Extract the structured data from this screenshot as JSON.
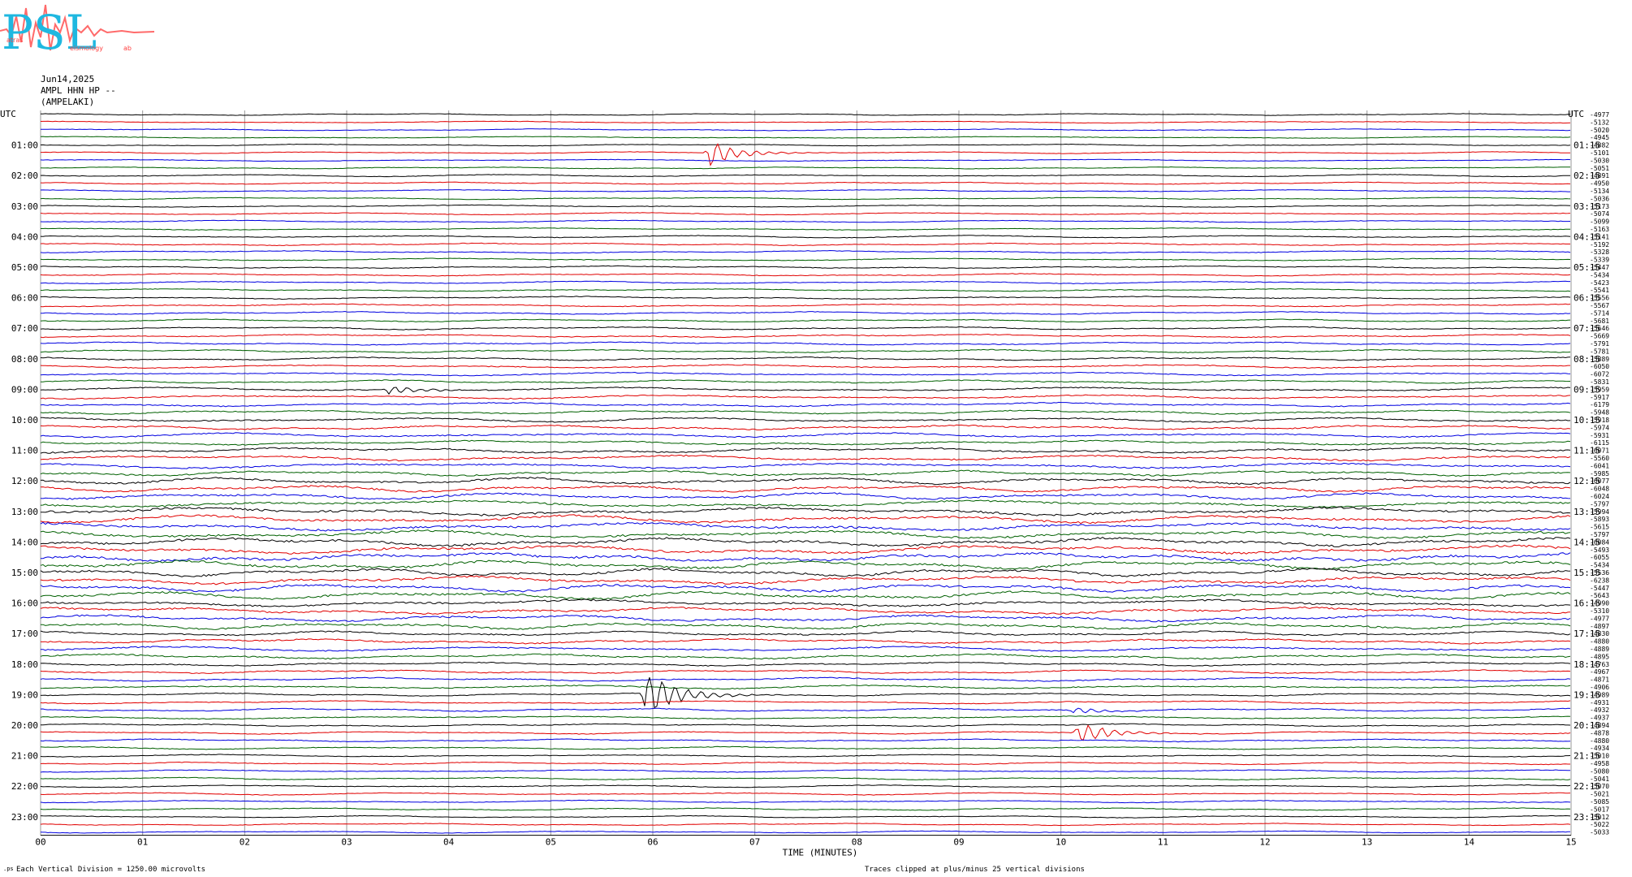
{
  "logo": {
    "letters": "PSL",
    "sub_text": [
      "atras",
      "eismology",
      "ab"
    ]
  },
  "header": {
    "date": "Jun14,2025",
    "station": "AMPL HHN HP --",
    "location": "(AMPELAKI)"
  },
  "footer": {
    "vertical_division": "Each Vertical Division = 1250.00 microvolts",
    "clip_note": "Traces clipped at plus/minus 25 vertical divisions"
  },
  "chart_data": {
    "type": "line",
    "title": "",
    "xlabel": "TIME (MINUTES)",
    "ylabel": "UTC",
    "right_axis_label": "UTC",
    "x_ticks": [
      "00",
      "01",
      "02",
      "03",
      "04",
      "05",
      "06",
      "07",
      "08",
      "09",
      "10",
      "11",
      "12",
      "13",
      "14",
      "15"
    ],
    "xlim": [
      0,
      15
    ],
    "grid_vertical": true,
    "trace_minutes": 15,
    "left_hour_labels": [
      "01:00",
      "02:00",
      "03:00",
      "04:00",
      "05:00",
      "06:00",
      "07:00",
      "08:00",
      "09:00",
      "10:00",
      "11:00",
      "12:00",
      "13:00",
      "14:00",
      "15:00",
      "16:00",
      "17:00",
      "18:00",
      "19:00",
      "20:00",
      "21:00",
      "22:00",
      "23:00"
    ],
    "right_hour_labels": [
      "01:15",
      "02:15",
      "03:15",
      "04:15",
      "05:15",
      "06:15",
      "07:15",
      "08:15",
      "09:15",
      "10:15",
      "11:15",
      "12:15",
      "13:15",
      "14:15",
      "15:15",
      "16:15",
      "17:15",
      "18:15",
      "19:15",
      "20:15",
      "21:15",
      "22:15",
      "23:15"
    ],
    "trace_colors": [
      "#000000",
      "#e00000",
      "#0000e0",
      "#006000"
    ],
    "trace_offsets": [
      "-4977",
      "-5132",
      "-5020",
      "-4945",
      "-4882",
      "-5101",
      "-5030",
      "-5051",
      "-4891",
      "-4950",
      "-5134",
      "-5036",
      "-5173",
      "-5074",
      "-5099",
      "-5163",
      "-5141",
      "-5192",
      "-5328",
      "-5339",
      "-5447",
      "-5434",
      "-5423",
      "-5541",
      "-5556",
      "-5567",
      "-5714",
      "-5681",
      "-5646",
      "-5669",
      "-5791",
      "-5781",
      "-5889",
      "-6050",
      "-6072",
      "-5831",
      "-5959",
      "-5917",
      "-6179",
      "-5948",
      "-5918",
      "-5974",
      "-5931",
      "-6115",
      "-6071",
      "-5560",
      "-6041",
      "-5985",
      "-6077",
      "-6048",
      "-6024",
      "-5797",
      "-5994",
      "-5893",
      "-5615",
      "-5797",
      "-6084",
      "-5493",
      "-6055",
      "-5434",
      "-5536",
      "-6238",
      "-5447",
      "-5643",
      "-4990",
      "-5310",
      "-4977",
      "-4897",
      "-4830",
      "-4880",
      "-4889",
      "-4895",
      "-4763",
      "-4967",
      "-4871",
      "-4906",
      "-4989",
      "-4931",
      "-4932",
      "-4937",
      "-4894",
      "-4878",
      "-4880",
      "-4934",
      "-5010",
      "-4958",
      "-5080",
      "-5041",
      "-5070",
      "-5021",
      "-5085",
      "-5017",
      "-5012",
      "-5022",
      "-5033"
    ],
    "noise_by_hour": [
      0.6,
      0.6,
      0.7,
      0.7,
      0.8,
      0.8,
      0.9,
      1.0,
      1.1,
      1.3,
      1.5,
      1.8,
      2.2,
      2.6,
      2.8,
      2.6,
      2.2,
      1.6,
      1.2,
      1.0,
      0.9,
      0.8,
      0.8,
      0.7
    ],
    "events": [
      {
        "trace": 5,
        "minute": 6.55,
        "amplitude": 14
      },
      {
        "trace": 36,
        "minute": 3.4,
        "amplitude": 5
      },
      {
        "trace": 76,
        "minute": 5.92,
        "amplitude": 30
      },
      {
        "trace": 78,
        "minute": 10.1,
        "amplitude": 4
      },
      {
        "trace": 81,
        "minute": 10.15,
        "amplitude": 14
      }
    ]
  }
}
